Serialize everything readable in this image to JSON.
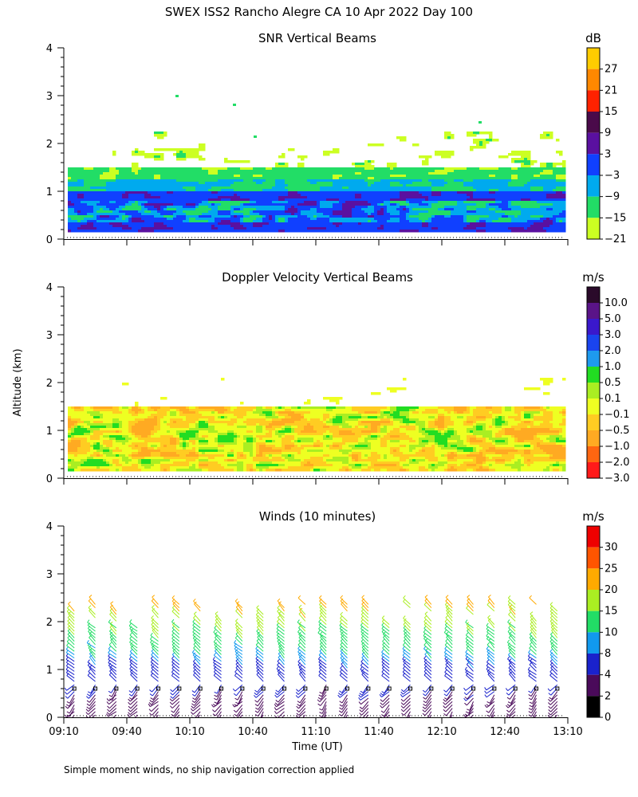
{
  "title": "SWEX ISS2 Rancho Alegre CA  10 Apr 2022 Day 100",
  "footnote": "Simple moment winds, no ship navigation correction applied",
  "shared_axes": {
    "y_label": "Altitude (km)",
    "x_label": "Time (UT)",
    "y_ticks": [
      "0",
      "1",
      "2",
      "3",
      "4"
    ],
    "x_tick_labels": [
      "09:10",
      "09:40",
      "10:10",
      "10:40",
      "11:10",
      "11:40",
      "12:10",
      "12:40",
      "13:10"
    ]
  },
  "chart_data": [
    {
      "type": "heatmap",
      "title": "SNR Vertical Beams",
      "xlabel": "",
      "ylabel": "Altitude (km)",
      "xlim": [
        "09:10",
        "13:10"
      ],
      "ylim": [
        0,
        4
      ],
      "colorbar": {
        "unit": "dB",
        "labels": [
          "27",
          "21",
          "15",
          "9",
          "3",
          "−3",
          "−9",
          "−15",
          "−21"
        ],
        "colors": [
          "#ffcc00",
          "#ff8800",
          "#ff2200",
          "#4a0a4a",
          "#5a10a0",
          "#1040ff",
          "#00aaee",
          "#22dd66",
          "#ccff22"
        ]
      },
      "layers": [
        {
          "altitude_range_km": [
            0.15,
            0.9
          ],
          "dominant": "−3 to 3 dB"
        },
        {
          "altitude_range_km": [
            0.9,
            1.5
          ],
          "dominant": "−15 to −3 dB"
        },
        {
          "altitude_range_km": [
            1.5,
            2.2
          ],
          "dominant": "−21 dB (sparse)"
        }
      ]
    },
    {
      "type": "heatmap",
      "title": "Doppler Velocity Vertical Beams",
      "xlabel": "",
      "ylabel": "Altitude (km)",
      "xlim": [
        "09:10",
        "13:10"
      ],
      "ylim": [
        0,
        4
      ],
      "colorbar": {
        "unit": "m/s",
        "labels": [
          "10.0",
          "5.0",
          "3.0",
          "2.0",
          "1.0",
          "0.5",
          "0.1",
          "−0.1",
          "−0.5",
          "−1.0",
          "−2.0",
          "−3.0"
        ],
        "colors": [
          "#2a0a2a",
          "#5a1488",
          "#3a18cc",
          "#1a44ee",
          "#1e9aee",
          "#22dd22",
          "#aaee22",
          "#eeff22",
          "#ffcc22",
          "#ffaa22",
          "#ff6611",
          "#ff1a1a"
        ]
      },
      "layers": [
        {
          "altitude_range_km": [
            0.15,
            1.5
          ],
          "dominant": "−0.5 to 0.1 m/s"
        }
      ]
    },
    {
      "type": "vector",
      "title": "Winds (10 minutes)",
      "xlabel": "Time (UT)",
      "ylabel": "Altitude (km)",
      "xlim": [
        "09:10",
        "13:10"
      ],
      "ylim": [
        0,
        4
      ],
      "colorbar": {
        "unit": "m/s",
        "labels": [
          "30",
          "25",
          "20",
          "15",
          "10",
          "8",
          "4",
          "2",
          "0"
        ],
        "colors": [
          "#ee0000",
          "#ff5500",
          "#ffaa00",
          "#aaee22",
          "#22dd66",
          "#1199ee",
          "#1a22cc",
          "#4a0a5a",
          "#000000"
        ]
      },
      "wind_profiles": {
        "interval_minutes": 10,
        "times": [
          "09:15",
          "09:25",
          "09:35",
          "09:45",
          "09:55",
          "10:05",
          "10:15",
          "10:25",
          "10:35",
          "10:45",
          "10:55",
          "11:05",
          "11:15",
          "11:25",
          "11:35",
          "11:45",
          "11:55",
          "12:05",
          "12:15",
          "12:25",
          "12:35",
          "12:45",
          "12:55",
          "13:05"
        ],
        "altitude_range_km": [
          0.05,
          2.4
        ],
        "speed_by_altitude_m_s": [
          {
            "altitude_km": 0.3,
            "speed": 3
          },
          {
            "altitude_km": 0.8,
            "speed": 5
          },
          {
            "altitude_km": 1.2,
            "speed": 9
          },
          {
            "altitude_km": 1.6,
            "speed": 13
          },
          {
            "altitude_km": 2.0,
            "speed": 17
          },
          {
            "altitude_km": 2.3,
            "speed": 20
          }
        ]
      }
    }
  ]
}
